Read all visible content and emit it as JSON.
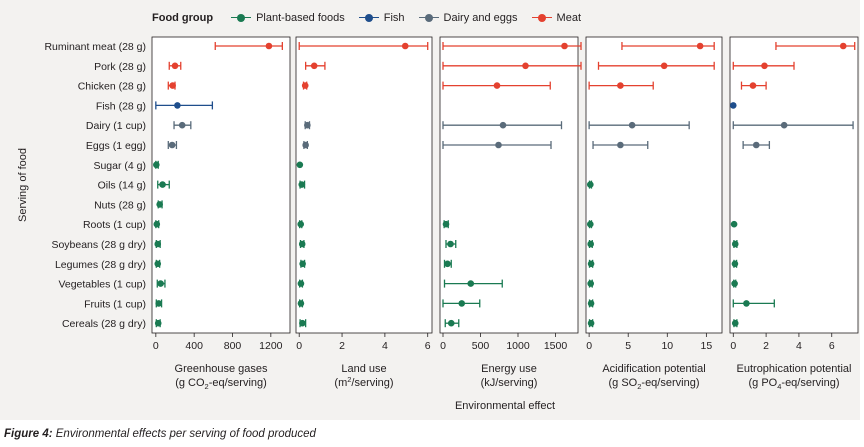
{
  "legend": {
    "title": "Food group",
    "items": [
      {
        "label": "Plant-based foods",
        "color": "#1a7a52"
      },
      {
        "label": "Fish",
        "color": "#1f4e8c"
      },
      {
        "label": "Dairy and eggs",
        "color": "#5a6b7a"
      },
      {
        "label": "Meat",
        "color": "#e4412f"
      }
    ]
  },
  "caption": {
    "label": "Figure 4:",
    "text": " Environmental effects per serving of food produced"
  },
  "chart_data": {
    "type": "scatter",
    "title": "",
    "ylabel": "Serving of food",
    "xlabel": "Environmental effect",
    "grid": false,
    "legend_position": "top",
    "categories": [
      "Ruminant meat (28 g)",
      "Pork (28 g)",
      "Chicken (28 g)",
      "Fish (28 g)",
      "Dairy (1 cup)",
      "Eggs (1 egg)",
      "Sugar (4 g)",
      "Oils (14 g)",
      "Nuts (28 g)",
      "Roots (1 cup)",
      "Soybeans (28 g dry)",
      "Legumes (28 g dry)",
      "Vegetables (1 cup)",
      "Fruits (1 cup)",
      "Cereals (28 g dry)"
    ],
    "groups": [
      "Meat",
      "Meat",
      "Meat",
      "Fish",
      "Dairy and eggs",
      "Dairy and eggs",
      "Plant-based foods",
      "Plant-based foods",
      "Plant-based foods",
      "Plant-based foods",
      "Plant-based foods",
      "Plant-based foods",
      "Plant-based foods",
      "Plant-based foods",
      "Plant-based foods"
    ],
    "panels": [
      {
        "label_line1": "Greenhouse gases",
        "label_line2_pre": "(g CO",
        "label_sub": "2",
        "label_line2_post": "-eq/serving)",
        "xlim": [
          -40,
          1400
        ],
        "ticks": [
          0,
          400,
          800,
          1200
        ],
        "tick_labels": [
          "0",
          "400",
          "800",
          "1200"
        ],
        "points": [
          {
            "mean": 1180,
            "low": 620,
            "high": 1320
          },
          {
            "mean": 200,
            "low": 140,
            "high": 260
          },
          {
            "mean": 175,
            "low": 130,
            "high": 200
          },
          {
            "mean": 225,
            "low": 0,
            "high": 590
          },
          {
            "mean": 275,
            "low": 190,
            "high": 365
          },
          {
            "mean": 170,
            "low": 130,
            "high": 215
          },
          {
            "mean": 5,
            "low": 0,
            "high": 25
          },
          {
            "mean": 70,
            "low": 20,
            "high": 140
          },
          {
            "mean": 40,
            "low": 25,
            "high": 65
          },
          {
            "mean": 10,
            "low": 0,
            "high": 30
          },
          {
            "mean": 20,
            "low": 5,
            "high": 45
          },
          {
            "mean": 20,
            "low": 5,
            "high": 40
          },
          {
            "mean": 50,
            "low": 15,
            "high": 95
          },
          {
            "mean": 30,
            "low": 5,
            "high": 60
          },
          {
            "mean": 25,
            "low": 5,
            "high": 45
          }
        ]
      },
      {
        "label_line1": "Land use",
        "label_line2_pre": "(m",
        "label_sup": "2",
        "label_line2_post": "/serving)",
        "xlim": [
          -0.15,
          6.2
        ],
        "ticks": [
          0,
          2,
          4,
          6
        ],
        "tick_labels": [
          "0",
          "2",
          "4",
          "6"
        ],
        "points": [
          {
            "mean": 4.95,
            "low": 0.0,
            "high": 6.0
          },
          {
            "mean": 0.7,
            "low": 0.3,
            "high": 1.2
          },
          {
            "mean": 0.28,
            "low": 0.2,
            "high": 0.35
          },
          {
            "mean": null,
            "low": null,
            "high": null
          },
          {
            "mean": 0.38,
            "low": 0.28,
            "high": 0.48
          },
          {
            "mean": 0.3,
            "low": 0.22,
            "high": 0.38
          },
          {
            "mean": 0.03,
            "low": 0.03,
            "high": 0.03
          },
          {
            "mean": 0.12,
            "low": 0.04,
            "high": 0.25
          },
          {
            "mean": null,
            "low": null,
            "high": null
          },
          {
            "mean": 0.07,
            "low": 0.02,
            "high": 0.12
          },
          {
            "mean": 0.14,
            "low": 0.06,
            "high": 0.22
          },
          {
            "mean": 0.16,
            "low": 0.08,
            "high": 0.25
          },
          {
            "mean": 0.08,
            "low": 0.02,
            "high": 0.15
          },
          {
            "mean": 0.08,
            "low": 0.02,
            "high": 0.15
          },
          {
            "mean": 0.15,
            "low": 0.04,
            "high": 0.3
          }
        ]
      },
      {
        "label_line1": "Energy use",
        "label_line2_pre": "(kJ/serving)",
        "xlim": [
          -40,
          1800
        ],
        "ticks": [
          0,
          500,
          1000,
          1500
        ],
        "tick_labels": [
          "0",
          "500",
          "1000",
          "1500"
        ],
        "points": [
          {
            "mean": 1620,
            "low": 0,
            "high": 1840
          },
          {
            "mean": 1100,
            "low": 0,
            "high": 1840
          },
          {
            "mean": 720,
            "low": 0,
            "high": 1430
          },
          {
            "mean": null,
            "low": null,
            "high": null
          },
          {
            "mean": 800,
            "low": 0,
            "high": 1580
          },
          {
            "mean": 740,
            "low": 0,
            "high": 1440
          },
          {
            "mean": null,
            "low": null,
            "high": null
          },
          {
            "mean": null,
            "low": null,
            "high": null
          },
          {
            "mean": null,
            "low": null,
            "high": null
          },
          {
            "mean": 40,
            "low": 15,
            "high": 70
          },
          {
            "mean": 100,
            "low": 40,
            "high": 170
          },
          {
            "mean": 60,
            "low": 20,
            "high": 110
          },
          {
            "mean": 370,
            "low": 20,
            "high": 790
          },
          {
            "mean": 250,
            "low": 0,
            "high": 490
          },
          {
            "mean": 110,
            "low": 30,
            "high": 210
          }
        ]
      },
      {
        "label_line1": "Acidification potential",
        "label_line2_pre": "(g SO",
        "label_sub": "2",
        "label_line2_post": "-eq/serving)",
        "xlim": [
          -0.4,
          17
        ],
        "ticks": [
          0,
          5,
          10,
          15
        ],
        "tick_labels": [
          "0",
          "5",
          "10",
          "15"
        ],
        "points": [
          {
            "mean": 14.2,
            "low": 4.2,
            "high": 16.0
          },
          {
            "mean": 9.6,
            "low": 1.2,
            "high": 16.0
          },
          {
            "mean": 4.0,
            "low": 0.0,
            "high": 8.2
          },
          {
            "mean": null,
            "low": null,
            "high": null
          },
          {
            "mean": 5.5,
            "low": 0.0,
            "high": 12.8
          },
          {
            "mean": 4.0,
            "low": 0.5,
            "high": 7.5
          },
          {
            "mean": null,
            "low": null,
            "high": null
          },
          {
            "mean": 0.15,
            "low": 0.05,
            "high": 0.3
          },
          {
            "mean": null,
            "low": null,
            "high": null
          },
          {
            "mean": 0.15,
            "low": 0.05,
            "high": 0.3
          },
          {
            "mean": 0.2,
            "low": 0.05,
            "high": 0.4
          },
          {
            "mean": 0.25,
            "low": 0.05,
            "high": 0.45
          },
          {
            "mean": 0.2,
            "low": 0.05,
            "high": 0.4
          },
          {
            "mean": 0.25,
            "low": 0.05,
            "high": 0.45
          },
          {
            "mean": 0.25,
            "low": 0.05,
            "high": 0.45
          }
        ]
      },
      {
        "label_line1": "Eutrophication potential",
        "label_line2_pre": "(g PO",
        "label_sub": "4",
        "label_line2_post": "-eq/serving)",
        "xlim": [
          -0.2,
          7.6
        ],
        "ticks": [
          0,
          2,
          4,
          6
        ],
        "tick_labels": [
          "0",
          "2",
          "4",
          "6"
        ],
        "points": [
          {
            "mean": 6.7,
            "low": 2.6,
            "high": 7.4
          },
          {
            "mean": 1.9,
            "low": 0.0,
            "high": 3.7
          },
          {
            "mean": 1.2,
            "low": 0.5,
            "high": 2.0
          },
          {
            "mean": 0.0,
            "low": 0.0,
            "high": 0.0
          },
          {
            "mean": 3.1,
            "low": 0.0,
            "high": 7.3
          },
          {
            "mean": 1.4,
            "low": 0.6,
            "high": 2.2
          },
          {
            "mean": null,
            "low": null,
            "high": null
          },
          {
            "mean": null,
            "low": null,
            "high": null
          },
          {
            "mean": null,
            "low": null,
            "high": null
          },
          {
            "mean": 0.05,
            "low": 0.05,
            "high": 0.05
          },
          {
            "mean": 0.12,
            "low": 0.04,
            "high": 0.22
          },
          {
            "mean": 0.1,
            "low": 0.04,
            "high": 0.2
          },
          {
            "mean": 0.08,
            "low": 0.03,
            "high": 0.15
          },
          {
            "mean": 0.8,
            "low": 0.0,
            "high": 2.5
          },
          {
            "mean": 0.12,
            "low": 0.04,
            "high": 0.22
          }
        ]
      }
    ]
  }
}
